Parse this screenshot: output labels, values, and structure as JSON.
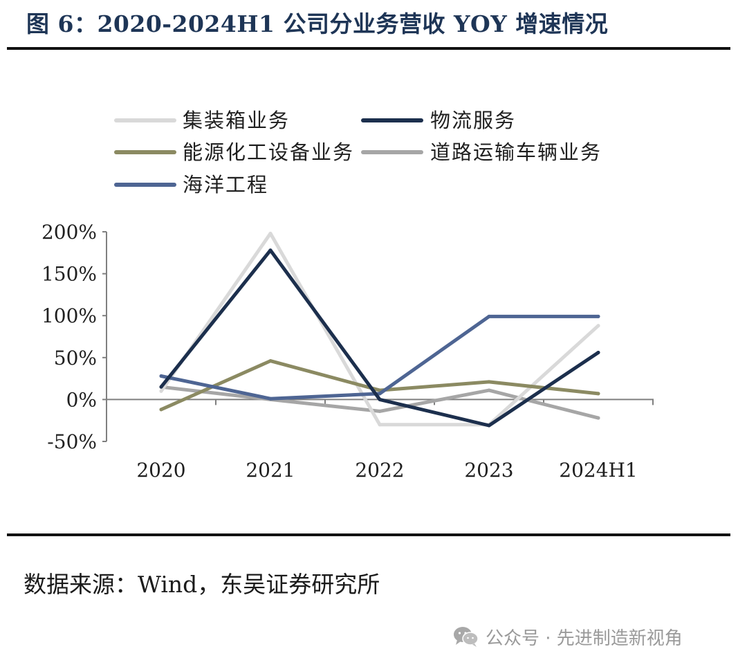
{
  "figure_title": "图 6：2020-2024H1 公司分业务营收 YOY 增速情况",
  "source_note": "数据来源：Wind，东吴证券研究所",
  "watermark": {
    "icon": "wechat-icon",
    "text": "公众号 · 先进制造新视角"
  },
  "chart_data": {
    "type": "line",
    "title": "",
    "xlabel": "",
    "ylabel": "",
    "categories": [
      "2020",
      "2021",
      "2022",
      "2023",
      "2024H1"
    ],
    "ylim": [
      -50,
      200
    ],
    "yticks": [
      -50,
      0,
      50,
      100,
      150,
      200
    ],
    "ytick_labels": [
      "-50%",
      "0%",
      "50%",
      "100%",
      "150%",
      "200%"
    ],
    "grid": false,
    "legend_position": "top",
    "series": [
      {
        "name": "集装箱业务",
        "color": "#d9d9d9",
        "values": [
          10,
          198,
          -30,
          -30,
          88
        ]
      },
      {
        "name": "物流服务",
        "color": "#1c2f4d",
        "values": [
          15,
          178,
          0,
          -31,
          56
        ]
      },
      {
        "name": "能源化工设备业务",
        "color": "#8b8a62",
        "values": [
          -12,
          46,
          11,
          21,
          7
        ]
      },
      {
        "name": "道路运输车辆业务",
        "color": "#a6a6a6",
        "values": [
          15,
          0,
          -14,
          11,
          -22
        ]
      },
      {
        "name": "海洋工程",
        "color": "#4e6593",
        "values": [
          28,
          1,
          7,
          99,
          99
        ]
      }
    ]
  }
}
